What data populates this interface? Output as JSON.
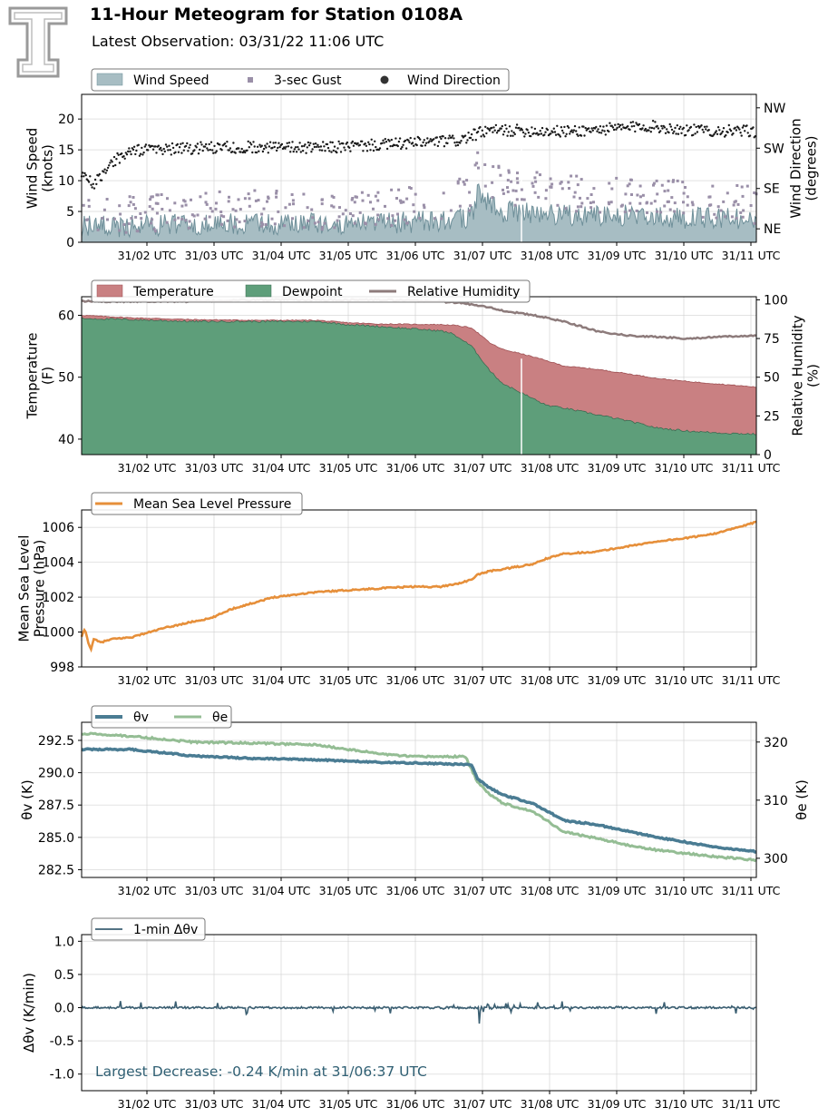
{
  "header": {
    "title": "11-Hour Meteogram for Station 0108A",
    "subtitle": "Latest Observation: 03/31/22 11:06 UTC"
  },
  "colors": {
    "wind_fill": "#a7bdc3",
    "wind_line": "#6e8f99",
    "gust": "#9a8fa8",
    "direction": "#1a1a1a",
    "temperature": "#c98082",
    "temperature_edge": "#9e4f52",
    "dewpoint": "#5e9e7a",
    "dewpoint_edge": "#3d6b52",
    "rh": "#8d7b7b",
    "pressure": "#e68f3a",
    "theta_v": "#4a7c93",
    "theta_e": "#94bd94",
    "dtheta": "#3b5f72",
    "annotation": "#2f5f73"
  },
  "chart_data": [
    {
      "id": "wind",
      "type": "area",
      "xticks": [
        "31/02 UTC",
        "31/03 UTC",
        "31/04 UTC",
        "31/05 UTC",
        "31/06 UTC",
        "31/07 UTC",
        "31/08 UTC",
        "31/09 UTC",
        "31/10 UTC",
        "31/11 UTC"
      ],
      "xlim": [
        0.2,
        11.1
      ],
      "ylabel": "Wind Speed\n(knots)",
      "ylim": [
        0,
        24
      ],
      "yticks": [
        0,
        5,
        10,
        15,
        20
      ],
      "y2label": "Wind Direction\n(degrees)",
      "y2ticks": [
        "NE",
        "SE",
        "SW",
        "NW"
      ],
      "y2tick_values": [
        45,
        135,
        225,
        315
      ],
      "y2lim": [
        15,
        345
      ],
      "legend": [
        "Wind Speed",
        "3-sec Gust",
        "Wind Direction"
      ],
      "grid": true,
      "series": {
        "wind_speed_knots": {
          "x": [
            0.2,
            1.0,
            2.0,
            3.0,
            4.0,
            5.0,
            6.0,
            6.5,
            6.6,
            6.8,
            7.0,
            7.5,
            8.0,
            9.0,
            10.0,
            11.1
          ],
          "y": [
            2.5,
            2.7,
            2.9,
            3.0,
            3.0,
            3.1,
            3.4,
            4.0,
            8.0,
            6.5,
            5.0,
            4.8,
            4.5,
            4.3,
            4.0,
            3.8
          ]
        },
        "gust_knots": {
          "x": [
            0.2,
            1.0,
            2.0,
            3.0,
            4.0,
            5.0,
            6.0,
            6.5,
            6.6,
            7.0,
            7.5,
            8.0,
            9.0,
            10.0,
            11.1
          ],
          "y": [
            4.0,
            4.5,
            5.0,
            5.5,
            5.0,
            5.5,
            6.5,
            8.0,
            12.0,
            9.0,
            8.5,
            8.0,
            7.5,
            7.0,
            6.0
          ]
        },
        "direction_degrees": {
          "x": [
            0.2,
            0.4,
            0.7,
            1.0,
            2.0,
            3.0,
            4.0,
            5.0,
            6.0,
            6.3,
            6.7,
            7.0,
            8.0,
            9.0,
            9.3,
            10.0,
            11.1
          ],
          "y": [
            170,
            145,
            195,
            220,
            225,
            228,
            225,
            232,
            240,
            242,
            262,
            265,
            262,
            270,
            275,
            265,
            262
          ]
        }
      }
    },
    {
      "id": "temperature",
      "type": "area",
      "xticks": [
        "31/02 UTC",
        "31/03 UTC",
        "31/04 UTC",
        "31/05 UTC",
        "31/06 UTC",
        "31/07 UTC",
        "31/08 UTC",
        "31/09 UTC",
        "31/10 UTC",
        "31/11 UTC"
      ],
      "xlim": [
        0.2,
        11.1
      ],
      "ylabel": "Temperature\n(F)",
      "ylim": [
        37.5,
        63
      ],
      "yticks": [
        40,
        50,
        60
      ],
      "y2label": "Relative Humidity\n(%)",
      "y2lim": [
        0,
        102
      ],
      "y2ticks": [
        0,
        25,
        50,
        75,
        100
      ],
      "legend": [
        "Temperature",
        "Dewpoint",
        "Relative Humidity"
      ],
      "grid": true,
      "series": {
        "temperature_f": {
          "x": [
            0.2,
            1.0,
            2.0,
            3.0,
            4.0,
            4.5,
            5.0,
            6.0,
            6.2,
            6.5,
            6.8,
            7.0,
            7.3,
            7.6,
            8.0,
            8.5,
            9.0,
            9.5,
            10.0,
            10.5,
            11.1
          ],
          "y": [
            60.0,
            59.6,
            59.3,
            59.2,
            59.2,
            58.8,
            58.6,
            58.5,
            58.4,
            58.0,
            55.5,
            54.5,
            53.8,
            53.0,
            51.8,
            51.3,
            50.6,
            49.8,
            49.3,
            48.9,
            48.4
          ]
        },
        "dewpoint_f": {
          "x": [
            0.2,
            1.0,
            2.0,
            3.0,
            4.0,
            4.5,
            5.0,
            6.0,
            6.2,
            6.5,
            6.8,
            7.0,
            7.4,
            7.7,
            8.0,
            8.5,
            9.0,
            9.5,
            10.0,
            10.5,
            11.1
          ],
          "y": [
            59.5,
            59.3,
            59.0,
            59.0,
            59.0,
            58.5,
            58.2,
            57.5,
            57.0,
            55.0,
            51.0,
            49.0,
            47.0,
            45.5,
            45.0,
            44.0,
            43.0,
            41.8,
            41.3,
            41.0,
            40.8
          ]
        },
        "relative_humidity_pct": {
          "x": [
            0.2,
            1.0,
            2.0,
            3.0,
            4.0,
            5.0,
            6.0,
            6.3,
            6.7,
            7.0,
            7.5,
            8.0,
            8.5,
            9.0,
            9.5,
            10.0,
            10.5,
            11.1
          ],
          "y": [
            99,
            99,
            99,
            100,
            100,
            100,
            99,
            98,
            96,
            93,
            90,
            86,
            80,
            77,
            76,
            75,
            76,
            77
          ]
        }
      }
    },
    {
      "id": "pressure",
      "type": "line",
      "xticks": [
        "31/02 UTC",
        "31/03 UTC",
        "31/04 UTC",
        "31/05 UTC",
        "31/06 UTC",
        "31/07 UTC",
        "31/08 UTC",
        "31/09 UTC",
        "31/10 UTC",
        "31/11 UTC"
      ],
      "xlim": [
        0.2,
        11.1
      ],
      "ylabel": "Mean Sea Level\nPressure (hPa)",
      "ylim": [
        998,
        1007
      ],
      "yticks": [
        998,
        1000,
        1002,
        1004,
        1006
      ],
      "legend": [
        "Mean Sea Level Pressure"
      ],
      "grid": true,
      "series": {
        "mslp_hpa": {
          "x": [
            0.2,
            0.25,
            0.3,
            0.35,
            0.4,
            0.5,
            0.7,
            1.0,
            1.2,
            1.5,
            2.0,
            2.3,
            2.6,
            3.0,
            3.3,
            4.0,
            4.5,
            5.0,
            5.5,
            6.0,
            6.3,
            6.5,
            6.6,
            6.8,
            7.0,
            7.5,
            7.7,
            8.0,
            8.5,
            9.0,
            9.5,
            10.0,
            10.5,
            11.1
          ],
          "y": [
            999.7,
            1000.2,
            999.5,
            999.0,
            999.6,
            999.4,
            999.6,
            999.7,
            999.9,
            1000.2,
            1000.6,
            1000.8,
            1001.3,
            1001.7,
            1002.0,
            1002.3,
            1002.4,
            1002.5,
            1002.6,
            1002.6,
            1002.8,
            1003.0,
            1003.3,
            1003.5,
            1003.6,
            1003.9,
            1004.2,
            1004.5,
            1004.6,
            1004.9,
            1005.2,
            1005.4,
            1005.7,
            1006.3
          ]
        }
      }
    },
    {
      "id": "theta",
      "type": "line",
      "xticks": [
        "31/02 UTC",
        "31/03 UTC",
        "31/04 UTC",
        "31/05 UTC",
        "31/06 UTC",
        "31/07 UTC",
        "31/08 UTC",
        "31/09 UTC",
        "31/10 UTC",
        "31/11 UTC"
      ],
      "xlim": [
        0.2,
        11.1
      ],
      "ylabel": "θv (K)",
      "ylim": [
        281.9,
        293.9
      ],
      "yticks": [
        282.5,
        285.0,
        287.5,
        290.0,
        292.5
      ],
      "y2label": "θe (K)",
      "y2lim": [
        296.7,
        323.4
      ],
      "y2ticks": [
        300,
        310,
        320
      ],
      "legend": [
        "θv",
        "θe"
      ],
      "grid": true,
      "series": {
        "theta_v_k": {
          "x": [
            0.2,
            1.0,
            2.0,
            3.0,
            4.0,
            5.0,
            6.0,
            6.5,
            6.6,
            6.8,
            7.0,
            7.5,
            8.0,
            8.5,
            9.0,
            9.5,
            10.0,
            10.5,
            11.1
          ],
          "y": [
            291.8,
            291.8,
            291.3,
            291.1,
            291.0,
            290.8,
            290.7,
            290.6,
            289.5,
            288.8,
            288.3,
            287.6,
            286.3,
            286.0,
            285.5,
            285.0,
            284.6,
            284.2,
            283.9
          ]
        },
        "theta_e_k": {
          "x": [
            0.2,
            1.0,
            2.0,
            3.0,
            4.0,
            5.0,
            5.5,
            6.0,
            6.4,
            6.6,
            6.8,
            7.0,
            7.5,
            8.0,
            8.5,
            9.0,
            9.5,
            10.0,
            10.5,
            11.1
          ],
          "y": [
            321.5,
            321.0,
            320.0,
            319.8,
            319.5,
            318.0,
            317.5,
            317.5,
            317.5,
            313.0,
            311.0,
            309.5,
            308.0,
            304.5,
            303.5,
            302.3,
            301.4,
            300.8,
            300.2,
            299.7
          ]
        }
      }
    },
    {
      "id": "dtheta",
      "type": "line",
      "xticks": [
        "31/02 UTC",
        "31/03 UTC",
        "31/04 UTC",
        "31/05 UTC",
        "31/06 UTC",
        "31/07 UTC",
        "31/08 UTC",
        "31/09 UTC",
        "31/10 UTC",
        "31/11 UTC"
      ],
      "xlim": [
        0.2,
        11.1
      ],
      "ylabel": "Δθv (K/min)",
      "ylim": [
        -1.25,
        1.1
      ],
      "yticks": [
        -1.0,
        -0.5,
        0.0,
        0.5,
        1.0
      ],
      "legend": [
        "1-min Δθv"
      ],
      "grid": true,
      "annotation": "Largest Decrease: -0.24 K/min at 31/06:37 UTC",
      "series": {
        "dtheta_v_k_per_min": {
          "x": [
            0.2,
            6.6,
            6.617,
            6.64,
            11.1
          ],
          "y": [
            0.0,
            0.0,
            -0.24,
            0.0,
            0.0
          ]
        }
      }
    }
  ]
}
